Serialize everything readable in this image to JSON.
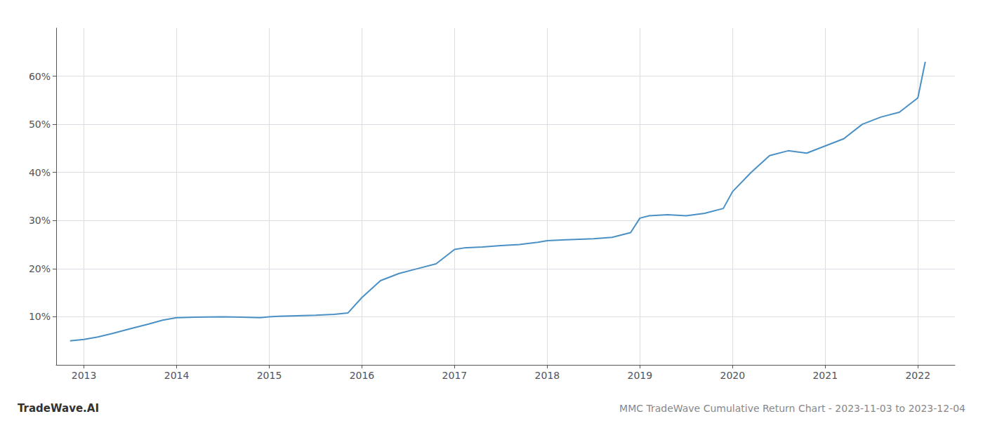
{
  "chart_data": {
    "type": "line",
    "title": "MMC TradeWave Cumulative Return Chart - 2023-11-03 to 2023-12-04",
    "annotations": [
      "TradeWave.AI"
    ],
    "x": [
      2012.85,
      2013.0,
      2013.15,
      2013.3,
      2013.5,
      2013.7,
      2013.85,
      2014.0,
      2014.2,
      2014.5,
      2014.7,
      2014.9,
      2015.0,
      2015.1,
      2015.3,
      2015.5,
      2015.7,
      2015.85,
      2016.0,
      2016.2,
      2016.4,
      2016.6,
      2016.8,
      2017.0,
      2017.1,
      2017.3,
      2017.5,
      2017.7,
      2017.9,
      2018.0,
      2018.2,
      2018.5,
      2018.7,
      2018.9,
      2019.0,
      2019.1,
      2019.3,
      2019.5,
      2019.7,
      2019.9,
      2020.0,
      2020.2,
      2020.4,
      2020.6,
      2020.8,
      2021.0,
      2021.2,
      2021.4,
      2021.6,
      2021.8,
      2022.0,
      2022.08
    ],
    "values": [
      5.0,
      5.3,
      5.8,
      6.5,
      7.5,
      8.5,
      9.3,
      9.8,
      9.9,
      10.0,
      9.9,
      9.8,
      10.0,
      10.1,
      10.2,
      10.3,
      10.5,
      10.8,
      14.0,
      17.5,
      19.0,
      20.0,
      21.0,
      24.0,
      24.3,
      24.5,
      24.8,
      25.0,
      25.5,
      25.8,
      26.0,
      26.2,
      26.5,
      27.5,
      30.5,
      31.0,
      31.2,
      31.0,
      31.5,
      32.5,
      36.0,
      40.0,
      43.5,
      44.5,
      44.0,
      45.5,
      47.0,
      50.0,
      51.5,
      52.5,
      55.5,
      63.0
    ],
    "color": "#4a90c4",
    "xlim": [
      2012.7,
      2022.4
    ],
    "xticks": [
      2013,
      2014,
      2015,
      2016,
      2017,
      2018,
      2019,
      2020,
      2021,
      2022
    ],
    "ylim": [
      0,
      70
    ],
    "yticks": [
      {
        "value": 10,
        "label": "10%"
      },
      {
        "value": 20,
        "label": "20%"
      },
      {
        "value": 30,
        "label": "30%"
      },
      {
        "value": 40,
        "label": "40%"
      },
      {
        "value": 50,
        "label": "50%"
      },
      {
        "value": 60,
        "label": "60%"
      }
    ],
    "grid": true
  }
}
